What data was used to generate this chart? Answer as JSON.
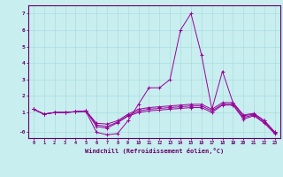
{
  "xlabel": "Windchill (Refroidissement éolien,°C)",
  "bg_color": "#c8eef0",
  "grid_color": "#aadddd",
  "line_color": "#990099",
  "series": [
    [
      1.2,
      0.9,
      1.0,
      1.0,
      1.05,
      1.05,
      -0.2,
      -0.35,
      -0.28,
      0.5,
      1.5,
      2.5,
      2.5,
      3.0,
      6.0,
      7.0,
      4.5,
      1.2,
      3.5,
      1.6,
      0.85,
      0.95,
      0.5,
      -0.2
    ],
    [
      1.2,
      0.9,
      1.0,
      1.0,
      1.05,
      1.1,
      0.35,
      0.3,
      0.5,
      0.9,
      1.2,
      1.3,
      1.35,
      1.4,
      1.45,
      1.5,
      1.5,
      1.2,
      1.6,
      1.6,
      0.8,
      0.9,
      0.5,
      -0.2
    ],
    [
      1.2,
      0.9,
      1.0,
      1.0,
      1.05,
      1.1,
      0.25,
      0.15,
      0.42,
      0.82,
      1.1,
      1.2,
      1.25,
      1.3,
      1.35,
      1.4,
      1.4,
      1.1,
      1.5,
      1.5,
      0.7,
      0.85,
      0.4,
      -0.25
    ],
    [
      1.2,
      0.9,
      1.0,
      1.0,
      1.05,
      1.1,
      0.15,
      0.05,
      0.38,
      0.78,
      1.0,
      1.1,
      1.15,
      1.2,
      1.25,
      1.3,
      1.3,
      1.0,
      1.45,
      1.45,
      0.6,
      0.8,
      0.35,
      -0.3
    ]
  ],
  "xlim": [
    -0.5,
    23.5
  ],
  "ylim": [
    -0.55,
    7.5
  ],
  "xtick_labels": [
    "0",
    "1",
    "2",
    "3",
    "4",
    "5",
    "6",
    "7",
    "8",
    "9",
    "10",
    "11",
    "12",
    "13",
    "14",
    "15",
    "16",
    "17",
    "18",
    "19",
    "20",
    "21",
    "22",
    "23"
  ],
  "ytick_positions": [
    7,
    6,
    5,
    4,
    3,
    2,
    1,
    -0.2
  ],
  "ytick_labels": [
    "7",
    "6",
    "5",
    "4",
    "3",
    "2",
    "1",
    "-0"
  ]
}
